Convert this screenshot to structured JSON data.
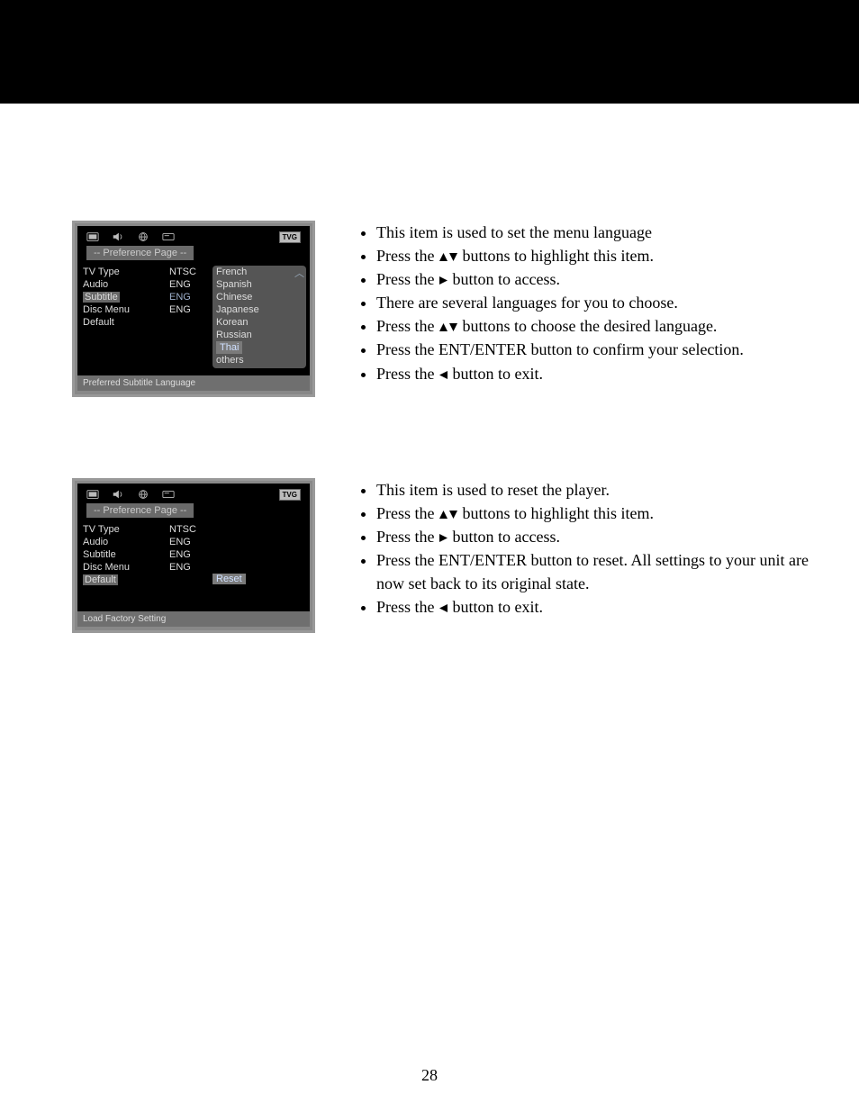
{
  "page_number": "28",
  "colors": {
    "osd_bg": "#888888",
    "osd_inner": "#000000",
    "osd_text": "#dddddd",
    "osd_highlight_bg": "#686868",
    "osd_value_hl": "#9eb0cc",
    "black_bar": "#000000"
  },
  "osd1": {
    "title": "--  Preference Page  --",
    "tvg": "TVG",
    "rows": [
      {
        "label": "TV Type",
        "value": "NTSC",
        "hl": false
      },
      {
        "label": "Audio",
        "value": "ENG",
        "hl": false
      },
      {
        "label": "Subtitle",
        "value": "ENG",
        "hl": true
      },
      {
        "label": "Disc Menu",
        "value": "ENG",
        "hl": false
      },
      {
        "label": "Default",
        "value": "",
        "hl": false
      }
    ],
    "options": [
      "French",
      "Spanish",
      "Chinese",
      "Japanese",
      "Korean",
      "Russian",
      "Thai",
      "others"
    ],
    "option_hl_index": 6,
    "footer": "Preferred Subtitle Language"
  },
  "osd2": {
    "title": "--  Preference Page  --",
    "tvg": "TVG",
    "rows": [
      {
        "label": "TV Type",
        "value": "NTSC",
        "hl": false
      },
      {
        "label": "Audio",
        "value": "ENG",
        "hl": false
      },
      {
        "label": "Subtitle",
        "value": "ENG",
        "hl": false
      },
      {
        "label": "Disc Menu",
        "value": "ENG",
        "hl": false
      },
      {
        "label": "Default",
        "value": "",
        "hl": true
      }
    ],
    "right_label": "Reset",
    "footer": "Load Factory Setting"
  },
  "instr1": {
    "items": [
      {
        "pre": "This item is used to set the menu language",
        "sym": "",
        "post": ""
      },
      {
        "pre": "Press the ",
        "sym": "updown",
        "post": " buttons to highlight this item."
      },
      {
        "pre": "Press the ",
        "sym": "right",
        "post": " button to access."
      },
      {
        "pre": "There are several languages for you to choose.",
        "sym": "",
        "post": ""
      },
      {
        "pre": "Press the ",
        "sym": "updown",
        "post": " buttons to choose the desired language."
      },
      {
        "pre": "Press the ENT/ENTER button to confirm your selection.",
        "sym": "",
        "post": ""
      },
      {
        "pre": "Press the ",
        "sym": "left",
        "post": " button to exit."
      }
    ]
  },
  "instr2": {
    "items": [
      {
        "pre": "This item is used to reset the player.",
        "sym": "",
        "post": ""
      },
      {
        "pre": "Press the ",
        "sym": "updown",
        "post": " buttons to highlight this item."
      },
      {
        "pre": "Press the ",
        "sym": "right",
        "post": " button to access."
      },
      {
        "pre": "Press the ENT/ENTER button to reset.  All settings to your unit are now set back to its original state.",
        "sym": "",
        "post": ""
      },
      {
        "pre": "Press the ",
        "sym": "left",
        "post": " button to exit."
      }
    ]
  }
}
